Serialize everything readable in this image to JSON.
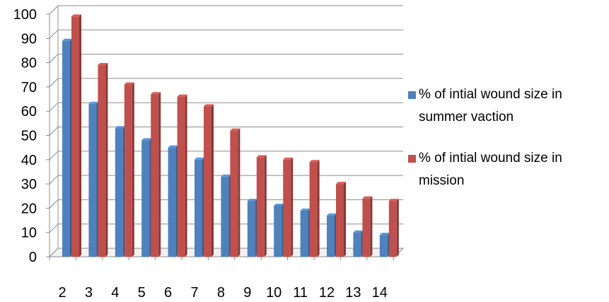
{
  "chart_data": {
    "type": "bar",
    "categories": [
      "2",
      "3",
      "4",
      "5",
      "6",
      "7",
      "8",
      "9",
      "10",
      "11",
      "12",
      "13",
      "14"
    ],
    "series": [
      {
        "name": "% of intial wound size in summer vaction",
        "values": [
          89,
          63,
          53,
          48,
          45,
          40,
          33,
          23,
          21,
          19,
          17,
          10,
          9
        ],
        "color": "#4f81bd"
      },
      {
        "name": "% of intial wound size in mission",
        "values": [
          99,
          79,
          71,
          67,
          66,
          62,
          52,
          41,
          40,
          39,
          30,
          24,
          23
        ],
        "color": "#c0504d"
      }
    ],
    "ylim": [
      0,
      100
    ],
    "y_ticks": [
      "0",
      "10",
      "20",
      "30",
      "40",
      "50",
      "60",
      "70",
      "80",
      "90",
      "100"
    ],
    "grid": true,
    "legend_position": "right",
    "title": "",
    "xlabel": "",
    "ylabel": ""
  }
}
